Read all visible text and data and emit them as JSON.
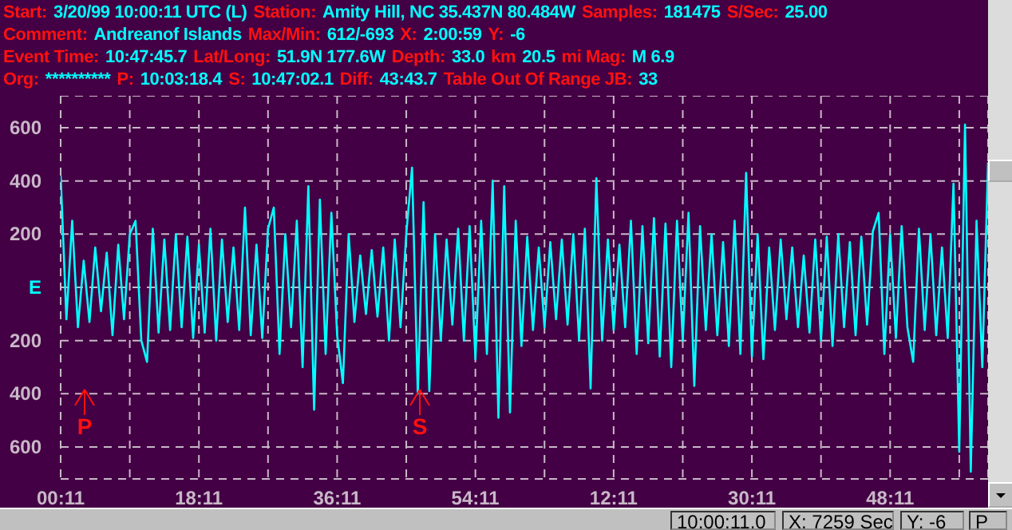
{
  "chart_data": {
    "type": "line",
    "annotations": [
      "Start:",
      "3/20/99 10:00:11 UTC (L)",
      "Station:",
      "Amity Hill, NC 35.437N 80.484W",
      "Samples:",
      "181475",
      "S/Sec:",
      "25.00",
      "Comment:",
      "Andreanof Islands",
      "Max/Min:",
      "612/-693",
      "X:",
      "2:00:59",
      "Y:",
      "-6",
      "Event Time:",
      "10:47:45.7",
      "Lat/Long:",
      "51.9N 177.6W",
      "Depth:",
      "33.0",
      "km",
      "20.5",
      "mi Mag:",
      "M 6.9",
      "Org:",
      "**********",
      "P:",
      "10:03:18.4",
      "S:",
      "10:47:02.1",
      "Diff:",
      "43:43.7",
      "Table Out Of Range  JB:",
      "33",
      "10:00:11.0",
      "X: 7259 Sec",
      "Y: -6",
      "P",
      "P",
      "S"
    ],
    "categories": [
      "00:11",
      null,
      null,
      null,
      null,
      null,
      null,
      null,
      null,
      null,
      null,
      null,
      null,
      null,
      null,
      null,
      null,
      null,
      null,
      null,
      null,
      null,
      null,
      null,
      "18:11",
      null,
      null,
      null,
      null,
      null,
      null,
      null,
      null,
      null,
      null,
      null,
      null,
      null,
      null,
      null,
      null,
      null,
      null,
      null,
      null,
      null,
      null,
      null,
      "36:11",
      null,
      null,
      null,
      null,
      null,
      null,
      null,
      null,
      null,
      null,
      null,
      null,
      null,
      null,
      null,
      null,
      null,
      null,
      null,
      null,
      null,
      null,
      null,
      "54:11",
      null,
      null,
      null,
      null,
      null,
      null,
      null,
      null,
      null,
      null,
      null,
      null,
      null,
      null,
      null,
      null,
      null,
      null,
      null,
      null,
      null,
      null,
      null,
      "12:11",
      null,
      null,
      null,
      null,
      null,
      null,
      null,
      null,
      null,
      null,
      null,
      null,
      null,
      null,
      null,
      null,
      null,
      null,
      null,
      null,
      null,
      null,
      null,
      "30:11",
      null,
      null,
      null,
      null,
      null,
      null,
      null,
      null,
      null,
      null,
      null,
      null,
      null,
      null,
      null,
      null,
      null,
      null,
      null,
      null,
      null,
      null,
      null,
      "48:11",
      null,
      null,
      null,
      null,
      null,
      null,
      null,
      null,
      null,
      null,
      null,
      null,
      null,
      null,
      null,
      null,
      null
    ],
    "series": [
      {
        "color": "#00ffff",
        "values": [
          420,
          -120,
          250,
          -150,
          100,
          -130,
          150,
          -90,
          130,
          -180,
          160,
          -120,
          200,
          250,
          -200,
          -280,
          220,
          -170,
          180,
          -160,
          200,
          -150,
          190,
          -190,
          160,
          -170,
          220,
          -200,
          180,
          -130,
          150,
          -160,
          300,
          -180,
          160,
          -190,
          220,
          300,
          -250,
          200,
          -150,
          250,
          -300,
          380,
          -460,
          330,
          -250,
          280,
          -180,
          -360,
          200,
          -130,
          120,
          -100,
          140,
          -110,
          150,
          -200,
          180,
          -150,
          200,
          450,
          -400,
          320,
          -390,
          200,
          -200,
          180,
          -140,
          220,
          -200,
          230,
          -270,
          250,
          -250,
          400,
          -490,
          380,
          -470,
          250,
          -220,
          190,
          -160,
          150,
          -150,
          170,
          -120,
          180,
          -140,
          200,
          -200,
          220,
          -380,
          410,
          -200,
          180,
          -160,
          160,
          -150,
          250,
          -250,
          230,
          -210,
          260,
          -260,
          240,
          -300,
          250,
          -200,
          280,
          -370,
          230,
          -160,
          200,
          -180,
          170,
          -220,
          250,
          -250,
          430,
          -260,
          200,
          -270,
          150,
          -160,
          180,
          -120,
          150,
          -150,
          120,
          -170,
          180,
          -200,
          190,
          -220,
          200,
          -150,
          170,
          -180,
          190,
          -140,
          210,
          280,
          -250,
          200,
          -190,
          230,
          -150,
          -280,
          220,
          -160,
          200,
          -180,
          150,
          -190,
          390,
          -618,
          612,
          -693,
          250,
          -300,
          470
        ]
      }
    ],
    "ylim": [
      -720,
      720
    ],
    "yticks": [
      {
        "value": 600,
        "label": "600"
      },
      {
        "value": 400,
        "label": "400"
      },
      {
        "value": 200,
        "label": "200"
      },
      {
        "value": 0,
        "label": "E"
      },
      {
        "value": -200,
        "label": "200"
      },
      {
        "value": -400,
        "label": "400"
      },
      {
        "value": -600,
        "label": "600"
      }
    ],
    "grid": true,
    "marker": "none",
    "line_style": "solid"
  }
}
